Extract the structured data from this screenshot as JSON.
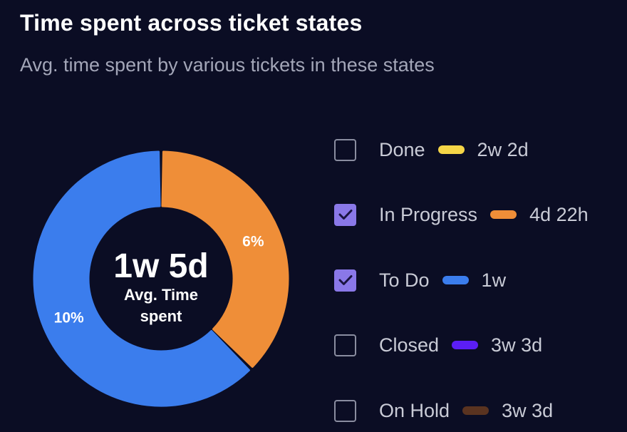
{
  "header": {
    "title": "Time spent across ticket states",
    "subtitle": "Avg. time spent by various tickets in these states"
  },
  "center": {
    "value": "1w 5d",
    "label_line1": "Avg. Time",
    "label_line2": "spent"
  },
  "legend": [
    {
      "label": "Done",
      "value": "2w 2d",
      "color": "#f5d547",
      "checked": false
    },
    {
      "label": "In Progress",
      "value": "4d 22h",
      "color": "#ef8e38",
      "checked": true
    },
    {
      "label": "To Do",
      "value": "1w",
      "color": "#3b7ded",
      "checked": true
    },
    {
      "label": "Closed",
      "value": "3w 3d",
      "color": "#5b1ef5",
      "checked": false
    },
    {
      "label": "On Hold",
      "value": "3w 3d",
      "color": "#5a3320",
      "checked": false
    }
  ],
  "chart_data": {
    "type": "pie",
    "variant": "donut",
    "categories": [
      "In Progress",
      "To Do"
    ],
    "values": [
      6,
      10
    ],
    "data_labels": [
      "6%",
      "10%"
    ],
    "colors": [
      "#ef8e38",
      "#3b7ded"
    ],
    "center_text": "1w 5d"
  }
}
